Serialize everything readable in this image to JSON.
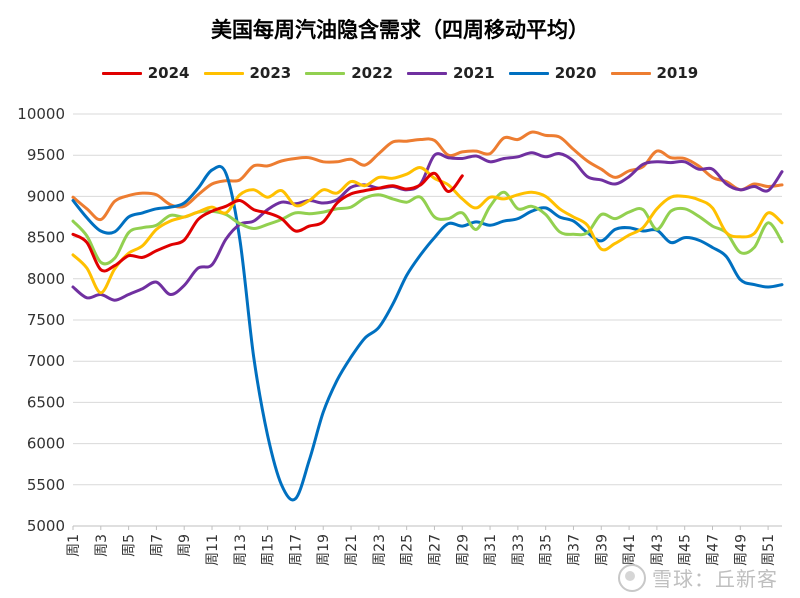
{
  "chart_data": {
    "type": "line",
    "title": "美国每周汽油隐含需求（四周移动平均）",
    "xlabel": "",
    "ylabel": "",
    "ylim": [
      5000,
      10000
    ],
    "yticks": [
      5000,
      5500,
      6000,
      6500,
      7000,
      7500,
      8000,
      8500,
      9000,
      9500,
      10000
    ],
    "x_tick_labels": [
      "周1",
      "周3",
      "周5",
      "周7",
      "周9",
      "周11",
      "周13",
      "周15",
      "周17",
      "周19",
      "周21",
      "周23",
      "周25",
      "周27",
      "周29",
      "周31",
      "周33",
      "周35",
      "周37",
      "周39",
      "周41",
      "周43",
      "周45",
      "周47",
      "周49",
      "周51"
    ],
    "x_tick_weeks": [
      1,
      3,
      5,
      7,
      9,
      11,
      13,
      15,
      17,
      19,
      21,
      23,
      25,
      27,
      29,
      31,
      33,
      35,
      37,
      39,
      41,
      43,
      45,
      47,
      49,
      51
    ],
    "grid": "horizontal",
    "legend_position": "top",
    "series": [
      {
        "name": "2024",
        "color": "#e00000",
        "points": [
          [
            1,
            8540
          ],
          [
            2,
            8440
          ],
          [
            3,
            8110
          ],
          [
            4,
            8160
          ],
          [
            5,
            8280
          ],
          [
            6,
            8260
          ],
          [
            7,
            8340
          ],
          [
            8,
            8410
          ],
          [
            9,
            8470
          ],
          [
            10,
            8720
          ],
          [
            11,
            8820
          ],
          [
            12,
            8880
          ],
          [
            13,
            8950
          ],
          [
            14,
            8840
          ],
          [
            15,
            8800
          ],
          [
            16,
            8730
          ],
          [
            17,
            8580
          ],
          [
            18,
            8640
          ],
          [
            19,
            8690
          ],
          [
            20,
            8920
          ],
          [
            21,
            9030
          ],
          [
            22,
            9070
          ],
          [
            23,
            9100
          ],
          [
            24,
            9130
          ],
          [
            25,
            9090
          ],
          [
            26,
            9140
          ],
          [
            27,
            9280
          ],
          [
            28,
            9060
          ],
          [
            29,
            9250
          ]
        ]
      },
      {
        "name": "2023",
        "color": "#ffc000",
        "points": [
          [
            1,
            8290
          ],
          [
            2,
            8130
          ],
          [
            3,
            7830
          ],
          [
            4,
            8120
          ],
          [
            5,
            8310
          ],
          [
            6,
            8400
          ],
          [
            7,
            8600
          ],
          [
            8,
            8700
          ],
          [
            9,
            8750
          ],
          [
            10,
            8810
          ],
          [
            11,
            8870
          ],
          [
            12,
            8800
          ],
          [
            13,
            9020
          ],
          [
            14,
            9080
          ],
          [
            15,
            8990
          ],
          [
            16,
            9070
          ],
          [
            17,
            8890
          ],
          [
            18,
            8950
          ],
          [
            19,
            9080
          ],
          [
            20,
            9040
          ],
          [
            21,
            9180
          ],
          [
            22,
            9130
          ],
          [
            23,
            9230
          ],
          [
            24,
            9220
          ],
          [
            25,
            9270
          ],
          [
            26,
            9350
          ],
          [
            27,
            9220
          ],
          [
            28,
            9140
          ],
          [
            29,
            8970
          ],
          [
            30,
            8860
          ],
          [
            31,
            8990
          ],
          [
            32,
            8970
          ],
          [
            33,
            9020
          ],
          [
            34,
            9050
          ],
          [
            35,
            9000
          ],
          [
            36,
            8850
          ],
          [
            37,
            8750
          ],
          [
            38,
            8650
          ],
          [
            39,
            8360
          ],
          [
            40,
            8430
          ],
          [
            41,
            8530
          ],
          [
            42,
            8620
          ],
          [
            43,
            8850
          ],
          [
            44,
            8990
          ],
          [
            45,
            9000
          ],
          [
            46,
            8960
          ],
          [
            47,
            8860
          ],
          [
            48,
            8560
          ],
          [
            49,
            8510
          ],
          [
            50,
            8550
          ],
          [
            51,
            8800
          ],
          [
            52,
            8680
          ]
        ]
      },
      {
        "name": "2022",
        "color": "#92d050",
        "points": [
          [
            1,
            8700
          ],
          [
            2,
            8520
          ],
          [
            3,
            8200
          ],
          [
            4,
            8250
          ],
          [
            5,
            8560
          ],
          [
            6,
            8620
          ],
          [
            7,
            8650
          ],
          [
            8,
            8770
          ],
          [
            9,
            8750
          ],
          [
            10,
            8810
          ],
          [
            11,
            8820
          ],
          [
            12,
            8780
          ],
          [
            13,
            8670
          ],
          [
            14,
            8610
          ],
          [
            15,
            8660
          ],
          [
            16,
            8720
          ],
          [
            17,
            8800
          ],
          [
            18,
            8790
          ],
          [
            19,
            8810
          ],
          [
            20,
            8850
          ],
          [
            21,
            8870
          ],
          [
            22,
            8980
          ],
          [
            23,
            9020
          ],
          [
            24,
            8970
          ],
          [
            25,
            8930
          ],
          [
            26,
            8990
          ],
          [
            27,
            8750
          ],
          [
            28,
            8730
          ],
          [
            29,
            8800
          ],
          [
            30,
            8600
          ],
          [
            31,
            8880
          ],
          [
            32,
            9050
          ],
          [
            33,
            8850
          ],
          [
            34,
            8880
          ],
          [
            35,
            8780
          ],
          [
            36,
            8570
          ],
          [
            37,
            8540
          ],
          [
            38,
            8560
          ],
          [
            39,
            8780
          ],
          [
            40,
            8730
          ],
          [
            41,
            8810
          ],
          [
            42,
            8840
          ],
          [
            43,
            8600
          ],
          [
            44,
            8820
          ],
          [
            45,
            8850
          ],
          [
            46,
            8760
          ],
          [
            47,
            8640
          ],
          [
            48,
            8560
          ],
          [
            49,
            8320
          ],
          [
            50,
            8380
          ],
          [
            51,
            8680
          ],
          [
            52,
            8450
          ]
        ]
      },
      {
        "name": "2021",
        "color": "#7030a0",
        "points": [
          [
            1,
            7900
          ],
          [
            2,
            7770
          ],
          [
            3,
            7810
          ],
          [
            4,
            7740
          ],
          [
            5,
            7810
          ],
          [
            6,
            7880
          ],
          [
            7,
            7960
          ],
          [
            8,
            7810
          ],
          [
            9,
            7920
          ],
          [
            10,
            8130
          ],
          [
            11,
            8170
          ],
          [
            12,
            8480
          ],
          [
            13,
            8660
          ],
          [
            14,
            8700
          ],
          [
            15,
            8840
          ],
          [
            16,
            8930
          ],
          [
            17,
            8910
          ],
          [
            18,
            8950
          ],
          [
            19,
            8920
          ],
          [
            20,
            8960
          ],
          [
            21,
            9110
          ],
          [
            22,
            9140
          ],
          [
            23,
            9100
          ],
          [
            24,
            9120
          ],
          [
            25,
            9080
          ],
          [
            26,
            9150
          ],
          [
            27,
            9500
          ],
          [
            28,
            9470
          ],
          [
            29,
            9460
          ],
          [
            30,
            9490
          ],
          [
            31,
            9420
          ],
          [
            32,
            9460
          ],
          [
            33,
            9480
          ],
          [
            34,
            9530
          ],
          [
            35,
            9480
          ],
          [
            36,
            9520
          ],
          [
            37,
            9430
          ],
          [
            38,
            9240
          ],
          [
            39,
            9200
          ],
          [
            40,
            9150
          ],
          [
            41,
            9240
          ],
          [
            42,
            9390
          ],
          [
            43,
            9420
          ],
          [
            44,
            9410
          ],
          [
            45,
            9420
          ],
          [
            46,
            9330
          ],
          [
            47,
            9330
          ],
          [
            48,
            9150
          ],
          [
            49,
            9080
          ],
          [
            50,
            9120
          ],
          [
            51,
            9070
          ],
          [
            52,
            9300
          ]
        ]
      },
      {
        "name": "2020",
        "color": "#0070c0",
        "points": [
          [
            1,
            8950
          ],
          [
            2,
            8740
          ],
          [
            3,
            8580
          ],
          [
            4,
            8570
          ],
          [
            5,
            8750
          ],
          [
            6,
            8800
          ],
          [
            7,
            8850
          ],
          [
            8,
            8870
          ],
          [
            9,
            8920
          ],
          [
            10,
            9100
          ],
          [
            11,
            9320
          ],
          [
            12,
            9280
          ],
          [
            13,
            8480
          ],
          [
            14,
            7050
          ],
          [
            15,
            6100
          ],
          [
            16,
            5500
          ],
          [
            17,
            5330
          ],
          [
            18,
            5800
          ],
          [
            19,
            6380
          ],
          [
            20,
            6770
          ],
          [
            21,
            7050
          ],
          [
            22,
            7280
          ],
          [
            23,
            7410
          ],
          [
            24,
            7690
          ],
          [
            25,
            8040
          ],
          [
            26,
            8290
          ],
          [
            27,
            8500
          ],
          [
            28,
            8670
          ],
          [
            29,
            8640
          ],
          [
            30,
            8690
          ],
          [
            31,
            8650
          ],
          [
            32,
            8700
          ],
          [
            33,
            8730
          ],
          [
            34,
            8820
          ],
          [
            35,
            8860
          ],
          [
            36,
            8750
          ],
          [
            37,
            8700
          ],
          [
            38,
            8560
          ],
          [
            39,
            8460
          ],
          [
            40,
            8600
          ],
          [
            41,
            8620
          ],
          [
            42,
            8580
          ],
          [
            43,
            8590
          ],
          [
            44,
            8440
          ],
          [
            45,
            8500
          ],
          [
            46,
            8470
          ],
          [
            47,
            8380
          ],
          [
            48,
            8270
          ],
          [
            49,
            7990
          ],
          [
            50,
            7930
          ],
          [
            51,
            7900
          ],
          [
            52,
            7930
          ]
        ]
      },
      {
        "name": "2019",
        "color": "#ed7d31",
        "points": [
          [
            1,
            8990
          ],
          [
            2,
            8850
          ],
          [
            3,
            8720
          ],
          [
            4,
            8940
          ],
          [
            5,
            9010
          ],
          [
            6,
            9040
          ],
          [
            7,
            9020
          ],
          [
            8,
            8900
          ],
          [
            9,
            8880
          ],
          [
            10,
            9020
          ],
          [
            11,
            9150
          ],
          [
            12,
            9190
          ],
          [
            13,
            9200
          ],
          [
            14,
            9370
          ],
          [
            15,
            9370
          ],
          [
            16,
            9430
          ],
          [
            17,
            9460
          ],
          [
            18,
            9470
          ],
          [
            19,
            9420
          ],
          [
            20,
            9420
          ],
          [
            21,
            9450
          ],
          [
            22,
            9380
          ],
          [
            23,
            9520
          ],
          [
            24,
            9660
          ],
          [
            25,
            9670
          ],
          [
            26,
            9690
          ],
          [
            27,
            9680
          ],
          [
            28,
            9500
          ],
          [
            29,
            9540
          ],
          [
            30,
            9550
          ],
          [
            31,
            9520
          ],
          [
            32,
            9710
          ],
          [
            33,
            9690
          ],
          [
            34,
            9780
          ],
          [
            35,
            9740
          ],
          [
            36,
            9720
          ],
          [
            37,
            9570
          ],
          [
            38,
            9430
          ],
          [
            39,
            9330
          ],
          [
            40,
            9230
          ],
          [
            41,
            9310
          ],
          [
            42,
            9360
          ],
          [
            43,
            9550
          ],
          [
            44,
            9470
          ],
          [
            45,
            9460
          ],
          [
            46,
            9370
          ],
          [
            47,
            9230
          ],
          [
            48,
            9180
          ],
          [
            49,
            9080
          ],
          [
            50,
            9150
          ],
          [
            51,
            9120
          ],
          [
            52,
            9140
          ]
        ]
      }
    ]
  },
  "watermark": "雪球：丘新客"
}
